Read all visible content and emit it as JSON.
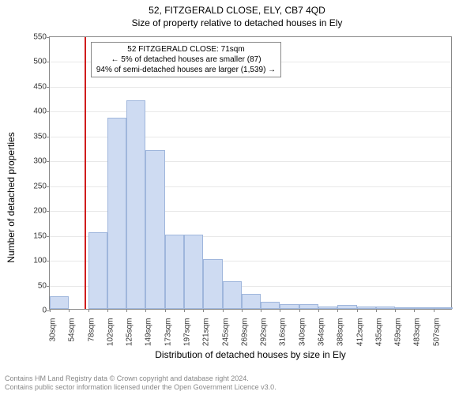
{
  "title": "52, FITZGERALD CLOSE, ELY, CB7 4QD",
  "subtitle": "Size of property relative to detached houses in Ely",
  "y_axis_label": "Number of detached properties",
  "x_axis_label": "Distribution of detached houses by size in Ely",
  "chart": {
    "type": "histogram",
    "y_min": 0,
    "y_max": 550,
    "y_tick_step": 50,
    "x_tick_labels": [
      "30sqm",
      "54sqm",
      "78sqm",
      "102sqm",
      "125sqm",
      "149sqm",
      "173sqm",
      "197sqm",
      "221sqm",
      "245sqm",
      "269sqm",
      "292sqm",
      "316sqm",
      "340sqm",
      "364sqm",
      "388sqm",
      "412sqm",
      "435sqm",
      "459sqm",
      "483sqm",
      "507sqm"
    ],
    "bars": [
      25,
      0,
      155,
      385,
      420,
      320,
      150,
      150,
      100,
      55,
      30,
      15,
      10,
      10,
      5,
      8,
      5,
      5,
      3,
      3,
      2
    ],
    "bar_fill": "#cedbf2",
    "bar_stroke": "#9fb6dc",
    "grid_color": "#e8e8e8",
    "axis_color": "#888888",
    "background": "#ffffff"
  },
  "marker": {
    "x_value": 71,
    "x_min": 30,
    "x_max": 507,
    "color": "#d01c1c"
  },
  "annotation": {
    "line1": "52 FITZGERALD CLOSE: 71sqm",
    "line2": "← 5% of detached houses are smaller (87)",
    "line3": "94% of semi-detached houses are larger (1,539) →"
  },
  "footer": {
    "line1": "Contains HM Land Registry data © Crown copyright and database right 2024.",
    "line2": "Contains public sector information licensed under the Open Government Licence v3.0."
  }
}
